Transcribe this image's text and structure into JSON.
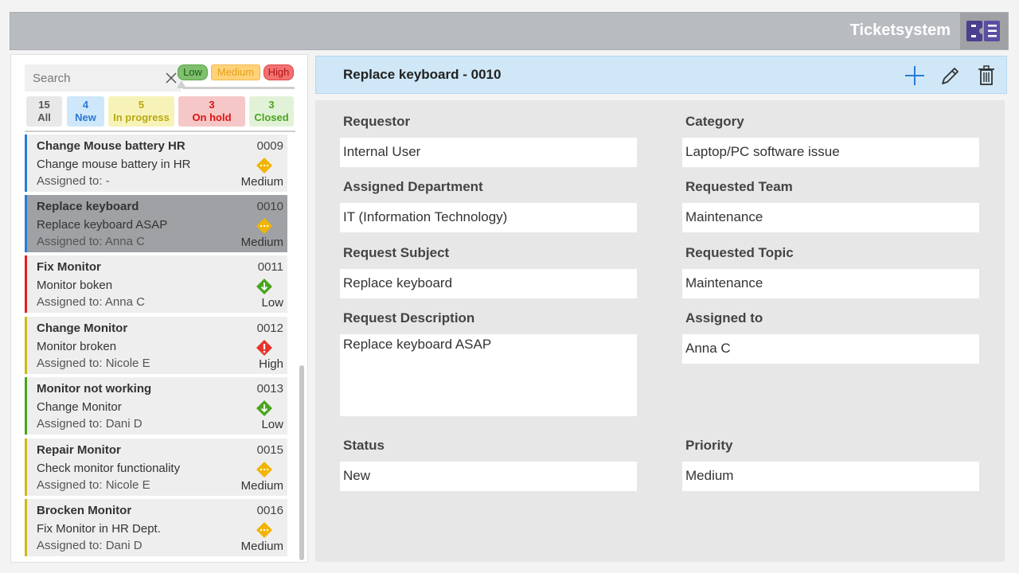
{
  "app": {
    "title": "Ticketsystem",
    "logo_icon": "ticket-list-icon"
  },
  "search": {
    "placeholder": "Search",
    "value": ""
  },
  "priority_legend": {
    "low": "Low",
    "medium": "Medium",
    "high": "High"
  },
  "status_filters": [
    {
      "count": "15",
      "label": "All"
    },
    {
      "count": "4",
      "label": "New"
    },
    {
      "count": "5",
      "label": "In progress"
    },
    {
      "count": "3",
      "label": "On hold"
    },
    {
      "count": "3",
      "label": "Closed"
    }
  ],
  "tickets": [
    {
      "title": "Change Mouse battery HR",
      "id": "0009",
      "desc": "Change mouse battery in HR",
      "assigned": "Assigned to: -",
      "priority": "Medium",
      "bar_color": "#2a7bd4",
      "selected": false
    },
    {
      "title": "Replace keyboard",
      "id": "0010",
      "desc": "Replace keyboard ASAP",
      "assigned": "Assigned to: Anna C",
      "priority": "Medium",
      "bar_color": "#2a7bd4",
      "selected": true
    },
    {
      "title": "Fix Monitor",
      "id": "0011",
      "desc": "Monitor boken",
      "assigned": "Assigned to: Anna C",
      "priority": "Low",
      "bar_color": "#e02020",
      "selected": false
    },
    {
      "title": "Change Monitor",
      "id": "0012",
      "desc": "Monitor broken",
      "assigned": "Assigned to: Nicole E",
      "priority": "High",
      "bar_color": "#c9bb1d",
      "selected": false
    },
    {
      "title": "Monitor not working",
      "id": "0013",
      "desc": "Change Monitor",
      "assigned": "Assigned to: Dani D",
      "priority": "Low",
      "bar_color": "#4aa51f",
      "selected": false
    },
    {
      "title": "Repair Monitor",
      "id": "0015",
      "desc": "Check monitor functionality",
      "assigned": "Assigned to: Nicole E",
      "priority": "Medium",
      "bar_color": "#c9bb1d",
      "selected": false
    },
    {
      "title": "Brocken Monitor",
      "id": "0016",
      "desc": "Fix Monitor in HR Dept.",
      "assigned": "Assigned to: Dani D",
      "priority": "Medium",
      "bar_color": "#c9bb1d",
      "selected": false
    }
  ],
  "priority_colors": {
    "Low": "#4aa51f",
    "Medium": "#f2b400",
    "High": "#e8332a"
  },
  "detail": {
    "title": "Replace keyboard - 0010",
    "actions": {
      "add_icon": "plus-icon",
      "edit_icon": "pencil-icon",
      "delete_icon": "trash-icon"
    },
    "fields": {
      "requestor": {
        "label": "Requestor",
        "value": "Internal User"
      },
      "category": {
        "label": "Category",
        "value": "Laptop/PC software issue"
      },
      "assigned_department": {
        "label": "Assigned Department",
        "value": "IT (Information Technology)"
      },
      "requested_team": {
        "label": "Requested Team",
        "value": "Maintenance"
      },
      "request_subject": {
        "label": "Request Subject",
        "value": "Replace keyboard"
      },
      "requested_topic": {
        "label": "Requested Topic",
        "value": "Maintenance"
      },
      "request_description": {
        "label": "Request Description",
        "value": "Replace keyboard ASAP"
      },
      "assigned_to": {
        "label": "Assigned to",
        "value": "Anna C"
      },
      "status": {
        "label": "Status",
        "value": "New"
      },
      "priority": {
        "label": "Priority",
        "value": "Medium"
      }
    }
  }
}
